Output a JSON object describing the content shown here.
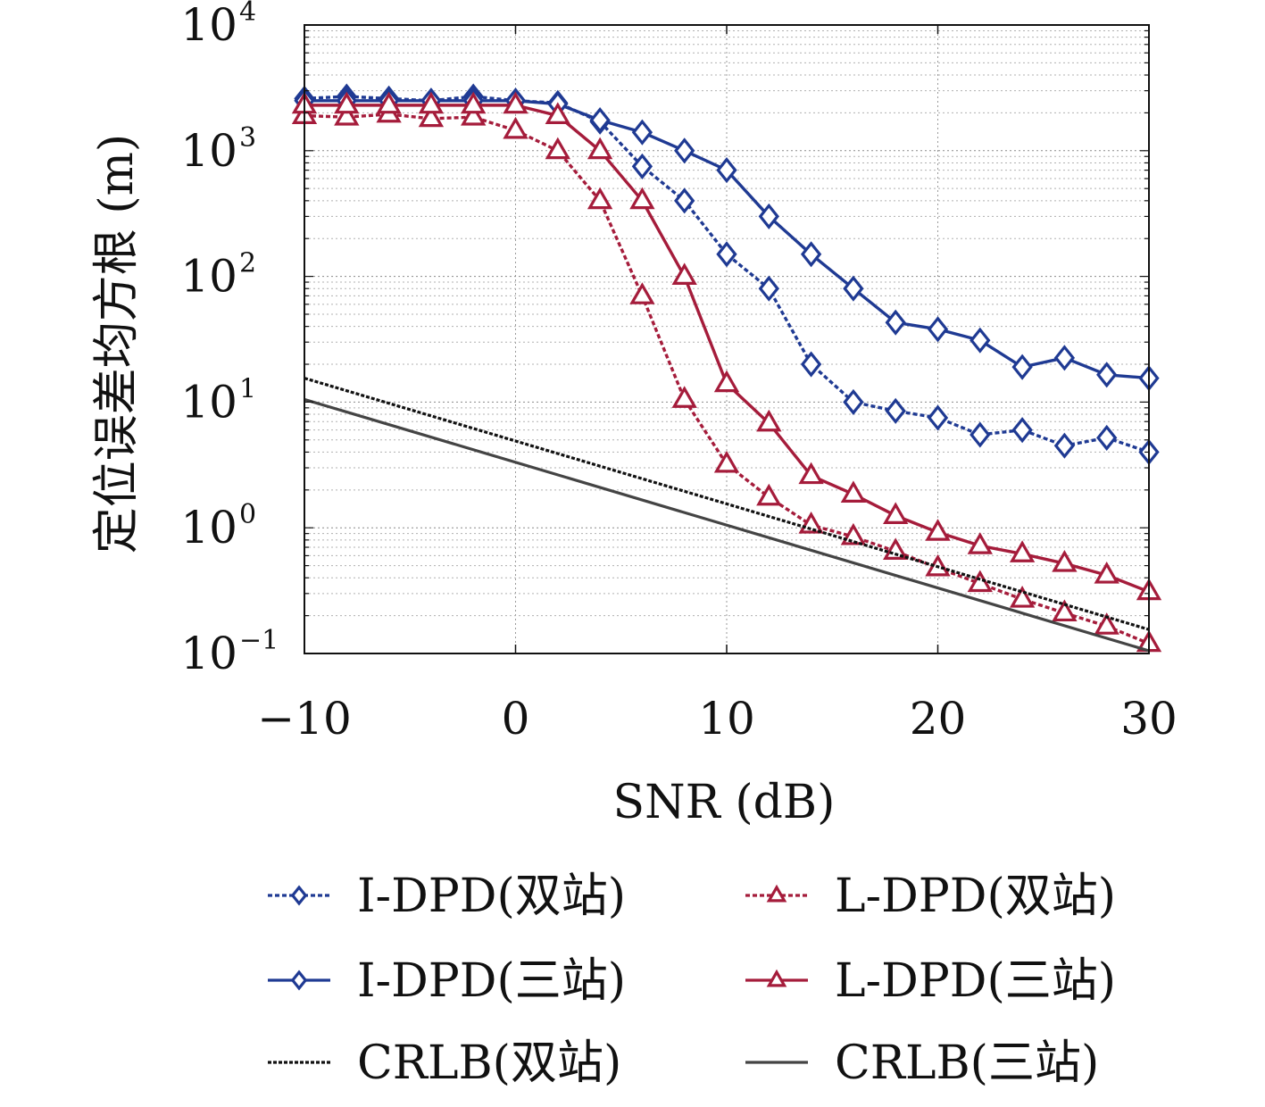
{
  "chart_data": {
    "type": "line",
    "xlabel": "SNR (dB)",
    "ylabel": "定位误差均方根 (m)",
    "xlim": [
      -10,
      30
    ],
    "ylim": [
      0.1,
      10000
    ],
    "yscale": "log",
    "x_ticks": [
      -10,
      0,
      10,
      20,
      30
    ],
    "x_tick_labels": [
      "−10",
      "0",
      "10",
      "20",
      "30"
    ],
    "y_ticks": [
      0.1,
      1,
      10,
      100,
      1000,
      10000
    ],
    "y_tick_labels": [
      {
        "base": "10",
        "exp": "−1"
      },
      {
        "base": "10",
        "exp": "0"
      },
      {
        "base": "10",
        "exp": "1"
      },
      {
        "base": "10",
        "exp": "2"
      },
      {
        "base": "10",
        "exp": "3"
      },
      {
        "base": "10",
        "exp": "4"
      }
    ],
    "grid": true,
    "legend_position": "bottom",
    "series": [
      {
        "name": "I-DPD(双站)",
        "color": "#1f3a93",
        "line": "dotted",
        "marker": "diamond",
        "x": [
          -10,
          -8,
          -6,
          -4,
          -2,
          0,
          2,
          4,
          6,
          8,
          10,
          12,
          14,
          16,
          18,
          20,
          22,
          24,
          26,
          28,
          30
        ],
        "y": [
          2600,
          2700,
          2600,
          2500,
          2700,
          2500,
          2400,
          1700,
          750,
          400,
          150,
          80,
          20,
          10,
          8.5,
          7.5,
          5.5,
          6,
          4.5,
          5.2,
          4
        ]
      },
      {
        "name": "L-DPD(双站)",
        "color": "#a51c3b",
        "line": "dotted",
        "marker": "triangle",
        "x": [
          -10,
          -8,
          -6,
          -4,
          -2,
          0,
          2,
          4,
          6,
          8,
          10,
          12,
          14,
          16,
          18,
          20,
          22,
          24,
          26,
          28,
          30
        ],
        "y": [
          1900,
          1850,
          1950,
          1800,
          1850,
          1450,
          1000,
          400,
          70,
          10.5,
          3.2,
          1.75,
          1.05,
          0.85,
          0.65,
          0.48,
          0.36,
          0.27,
          0.21,
          0.165,
          0.12
        ]
      },
      {
        "name": "I-DPD(三站)",
        "color": "#1f3a93",
        "line": "solid",
        "marker": "diamond",
        "x": [
          -10,
          -8,
          -6,
          -4,
          -2,
          0,
          2,
          4,
          6,
          8,
          10,
          12,
          14,
          16,
          18,
          20,
          22,
          24,
          26,
          28,
          30
        ],
        "y": [
          2500,
          2500,
          2500,
          2500,
          2500,
          2500,
          2350,
          1750,
          1400,
          1000,
          700,
          300,
          150,
          80,
          43,
          38,
          31,
          19,
          22.5,
          16.5,
          15.5
        ]
      },
      {
        "name": "L-DPD(三站)",
        "color": "#a51c3b",
        "line": "solid",
        "marker": "triangle",
        "x": [
          -10,
          -8,
          -6,
          -4,
          -2,
          0,
          2,
          4,
          6,
          8,
          10,
          12,
          14,
          16,
          18,
          20,
          22,
          24,
          26,
          28,
          30
        ],
        "y": [
          2300,
          2300,
          2300,
          2300,
          2300,
          2300,
          1900,
          1000,
          400,
          100,
          14,
          6.8,
          2.6,
          1.85,
          1.25,
          0.92,
          0.72,
          0.62,
          0.52,
          0.42,
          0.31
        ]
      },
      {
        "name": "CRLB(双站)",
        "color": "#111111",
        "line": "dotted",
        "marker": "none",
        "x": [
          -10,
          30
        ],
        "y": [
          15.5,
          0.155
        ]
      },
      {
        "name": "CRLB(三站)",
        "color": "#444444",
        "line": "solid",
        "marker": "none",
        "x": [
          -10,
          30
        ],
        "y": [
          10.5,
          0.105
        ]
      }
    ]
  }
}
